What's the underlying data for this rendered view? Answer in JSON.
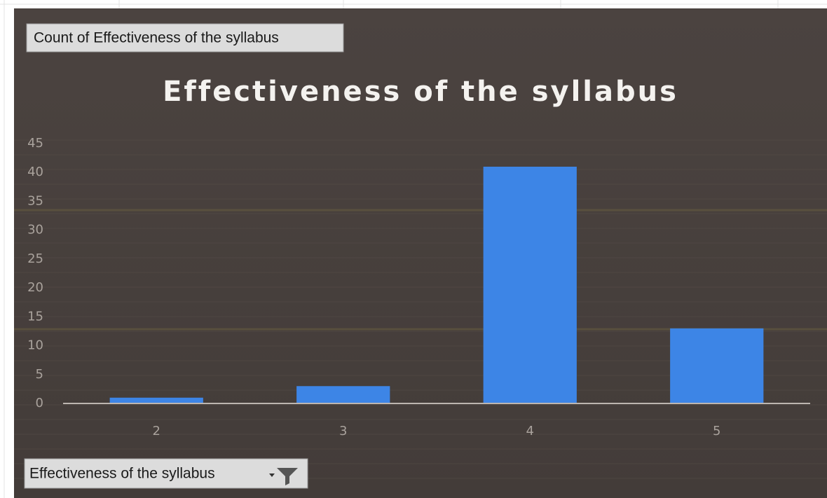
{
  "chart_data": {
    "type": "bar",
    "title": "Effectiveness of the syllabus",
    "value_field_button": "Count of Effectiveness of the syllabus",
    "axis_field_button": "Effectiveness of the syllabus",
    "categories": [
      "2",
      "3",
      "4",
      "5"
    ],
    "values": [
      1,
      3,
      41,
      13
    ],
    "color": "#3d85e6",
    "ylim": [
      0,
      45
    ],
    "yticks": [
      0,
      5,
      10,
      15,
      20,
      25,
      30,
      35,
      40,
      45
    ]
  }
}
